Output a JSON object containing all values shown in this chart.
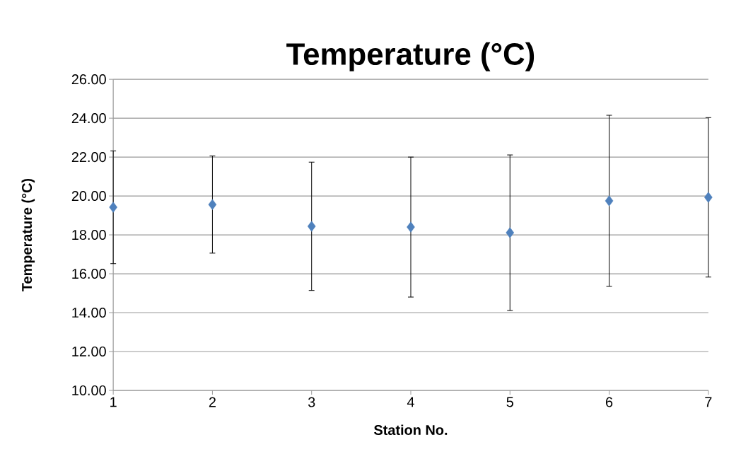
{
  "chart_data": {
    "type": "scatter",
    "title": "Temperature (°C)",
    "xlabel": "Station  No.",
    "ylabel": "Temperature (°C)",
    "categories": [
      "1",
      "2",
      "3",
      "4",
      "5",
      "6",
      "7"
    ],
    "values": [
      19.42,
      19.56,
      18.44,
      18.4,
      18.11,
      19.75,
      19.93
    ],
    "errors": [
      2.9,
      2.5,
      3.3,
      3.6,
      4.0,
      4.4,
      4.1
    ],
    "color": "#4f81bd",
    "marker": "diamond",
    "ylim": [
      10,
      26
    ],
    "yticks": [
      {
        "value": 10,
        "label": "10.00"
      },
      {
        "value": 12,
        "label": "12.00"
      },
      {
        "value": 14,
        "label": "14.00"
      },
      {
        "value": 16,
        "label": "16.00"
      },
      {
        "value": 18,
        "label": "18.00"
      },
      {
        "value": 20,
        "label": "20.00"
      },
      {
        "value": 22,
        "label": "22.00"
      },
      {
        "value": 24,
        "label": "24.00"
      },
      {
        "value": 26,
        "label": "26.00"
      }
    ],
    "grid": "y"
  }
}
